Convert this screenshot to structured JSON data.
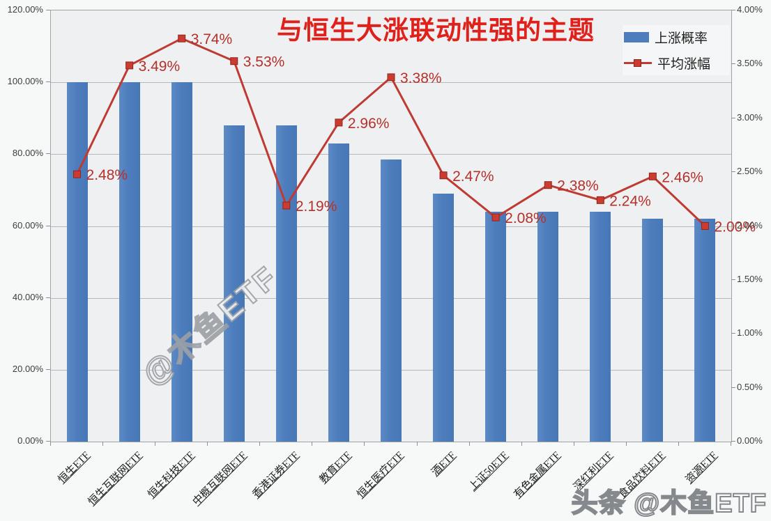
{
  "title": {
    "text": "与恒生大涨联动性强的主题",
    "color": "#e0201a"
  },
  "watermarks": {
    "center": "@木鱼ETF",
    "bottom_right": "头条 @木鱼ETF"
  },
  "chart_data": {
    "type": "bar+line",
    "categories": [
      "恒生ETF",
      "恒生互联网ETF",
      "恒生科技ETF",
      "中概互联网ETF",
      "香港证券ETF",
      "教育ETF",
      "恒生医疗ETF",
      "酒ETF",
      "上证50ETF",
      "有色金属ETF",
      "深红利ETF",
      "食品饮料ETF",
      "资源ETF"
    ],
    "series": [
      {
        "name": "上涨概率",
        "type": "bar",
        "axis": "left",
        "color": "#4d7dbd",
        "values": [
          100,
          100,
          100,
          88,
          88,
          83,
          78.5,
          69,
          64,
          64,
          64,
          62,
          62
        ]
      },
      {
        "name": "平均涨幅",
        "type": "line",
        "axis": "right",
        "color": "#bf3a32",
        "values": [
          2.48,
          3.49,
          3.74,
          3.53,
          2.19,
          2.96,
          3.38,
          2.47,
          2.08,
          2.38,
          2.24,
          2.46,
          2.0
        ],
        "point_labels": [
          "2.48%",
          "3.49%",
          "3.74%",
          "3.53%",
          "2.19%",
          "2.96%",
          "3.38%",
          "2.47%",
          "2.08%",
          "2.38%",
          "2.24%",
          "2.46%",
          "2.00%"
        ]
      }
    ],
    "left_axis": {
      "min": 0,
      "max": 120,
      "step": 20,
      "tick_labels": [
        "0.00%",
        "20.00%",
        "40.00%",
        "60.00%",
        "80.00%",
        "100.00%",
        "120.00%"
      ]
    },
    "right_axis": {
      "min": 0,
      "max": 4,
      "step": 0.5,
      "tick_labels": [
        "0.00%",
        "0.50%",
        "1.00%",
        "1.50%",
        "2.00%",
        "2.50%",
        "3.00%",
        "3.50%",
        "4.00%"
      ]
    },
    "grid": true,
    "legend_position": "top-right",
    "marker_color": "#cc3b30",
    "label_color": "#b5302a"
  }
}
